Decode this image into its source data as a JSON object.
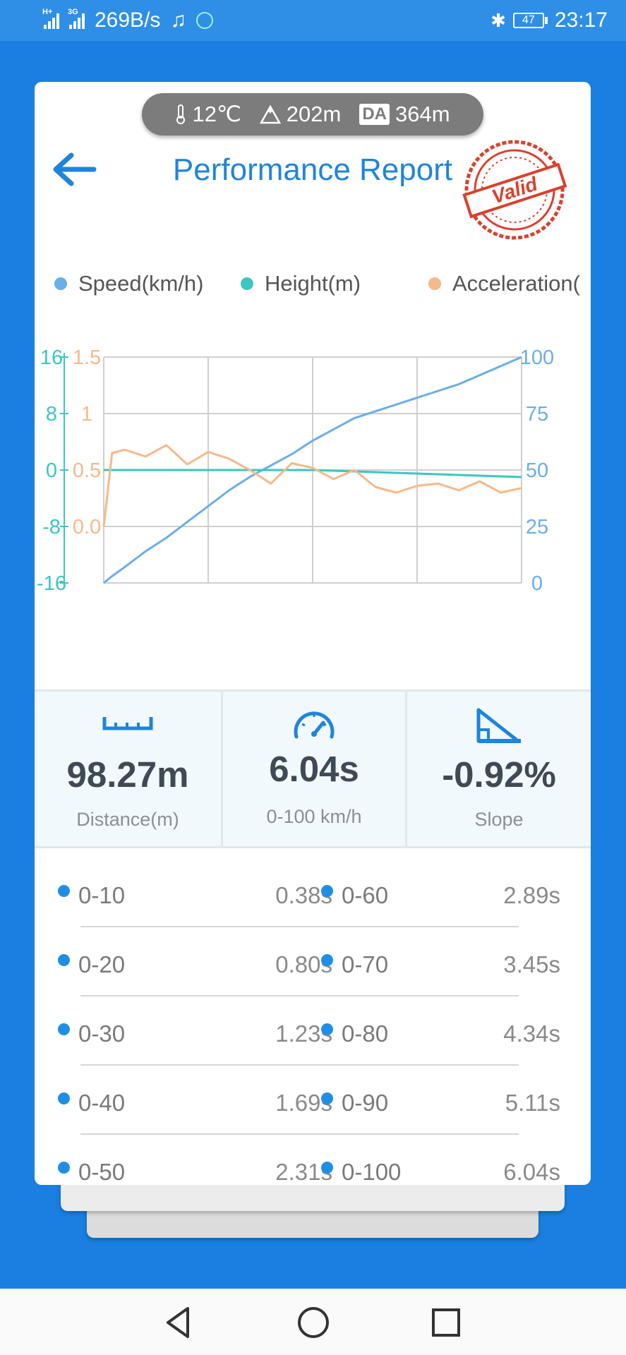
{
  "status_bar": {
    "network_1": "H+",
    "network_2": "3G",
    "speed": "269B/s",
    "battery": "47",
    "time": "23:17"
  },
  "conditions": {
    "temperature": "12℃",
    "altitude": "202m",
    "da_label": "DA",
    "density_altitude": "364m"
  },
  "header": {
    "title": "Performance Report",
    "stamp_text": "Valid"
  },
  "colors": {
    "speed": "#6aaeea",
    "height": "#3cc6c0",
    "acceleration": "#f6b98a",
    "accent": "#1f84db"
  },
  "legend": [
    "Speed(km/h)",
    "Height(m)",
    "Acceleration("
  ],
  "chart_data": {
    "type": "line",
    "x": [
      0,
      0.02,
      0.05,
      0.1,
      0.15,
      0.2,
      0.25,
      0.3,
      0.35,
      0.4,
      0.45,
      0.5,
      0.55,
      0.6,
      0.65,
      0.7,
      0.75,
      0.8,
      0.85,
      0.9,
      0.95,
      1.0
    ],
    "series": [
      {
        "name": "Speed(km/h)",
        "axis": "right",
        "values": [
          0,
          3,
          7,
          14,
          20,
          27,
          34,
          41,
          47,
          52,
          57,
          63,
          68,
          73,
          76,
          79,
          82,
          85,
          88,
          92,
          96,
          100
        ]
      },
      {
        "name": "Height(m)",
        "axis": "left-outer",
        "values": [
          0,
          0,
          0,
          0,
          0,
          0,
          0,
          0,
          0,
          0,
          0,
          0,
          -0.1,
          -0.2,
          -0.3,
          -0.4,
          -0.5,
          -0.6,
          -0.7,
          -0.8,
          -0.9,
          -1.0
        ]
      },
      {
        "name": "Acceleration(",
        "axis": "left-inner",
        "values": [
          0.0,
          0.65,
          0.68,
          0.62,
          0.72,
          0.55,
          0.66,
          0.6,
          0.5,
          0.38,
          0.56,
          0.52,
          0.42,
          0.5,
          0.35,
          0.3,
          0.36,
          0.38,
          0.32,
          0.4,
          0.3,
          0.34
        ]
      }
    ],
    "left_outer_axis": {
      "ylim": [
        -16,
        16
      ],
      "ticks": [
        "16",
        "8",
        "0",
        "-8",
        "-16"
      ]
    },
    "left_inner_axis": {
      "ylim": [
        -0.5,
        1.5
      ],
      "ticks": [
        "1.5",
        "1",
        "0.5",
        "0.0"
      ]
    },
    "right_axis": {
      "ylim": [
        0,
        100
      ],
      "ticks": [
        "100",
        "75",
        "50",
        "25",
        "0"
      ]
    },
    "grid": true,
    "legend_position": "top"
  },
  "stats": [
    {
      "value": "98.27m",
      "label": "Distance(m)",
      "icon": "ruler-icon"
    },
    {
      "value": "6.04s",
      "label": "0-100 km/h",
      "icon": "speedometer-icon"
    },
    {
      "value": "-0.92%",
      "label": "Slope",
      "icon": "slope-icon"
    }
  ],
  "times": [
    {
      "left_label": "0-10",
      "left_value": "0.38s",
      "right_label": "0-60",
      "right_value": "2.89s"
    },
    {
      "left_label": "0-20",
      "left_value": "0.80s",
      "right_label": "0-70",
      "right_value": "3.45s"
    },
    {
      "left_label": "0-30",
      "left_value": "1.23s",
      "right_label": "0-80",
      "right_value": "4.34s"
    },
    {
      "left_label": "0-40",
      "left_value": "1.69s",
      "right_label": "0-90",
      "right_value": "5.11s"
    },
    {
      "left_label": "0-50",
      "left_value": "2.31s",
      "right_label": "0-100",
      "right_value": "6.04s"
    }
  ]
}
